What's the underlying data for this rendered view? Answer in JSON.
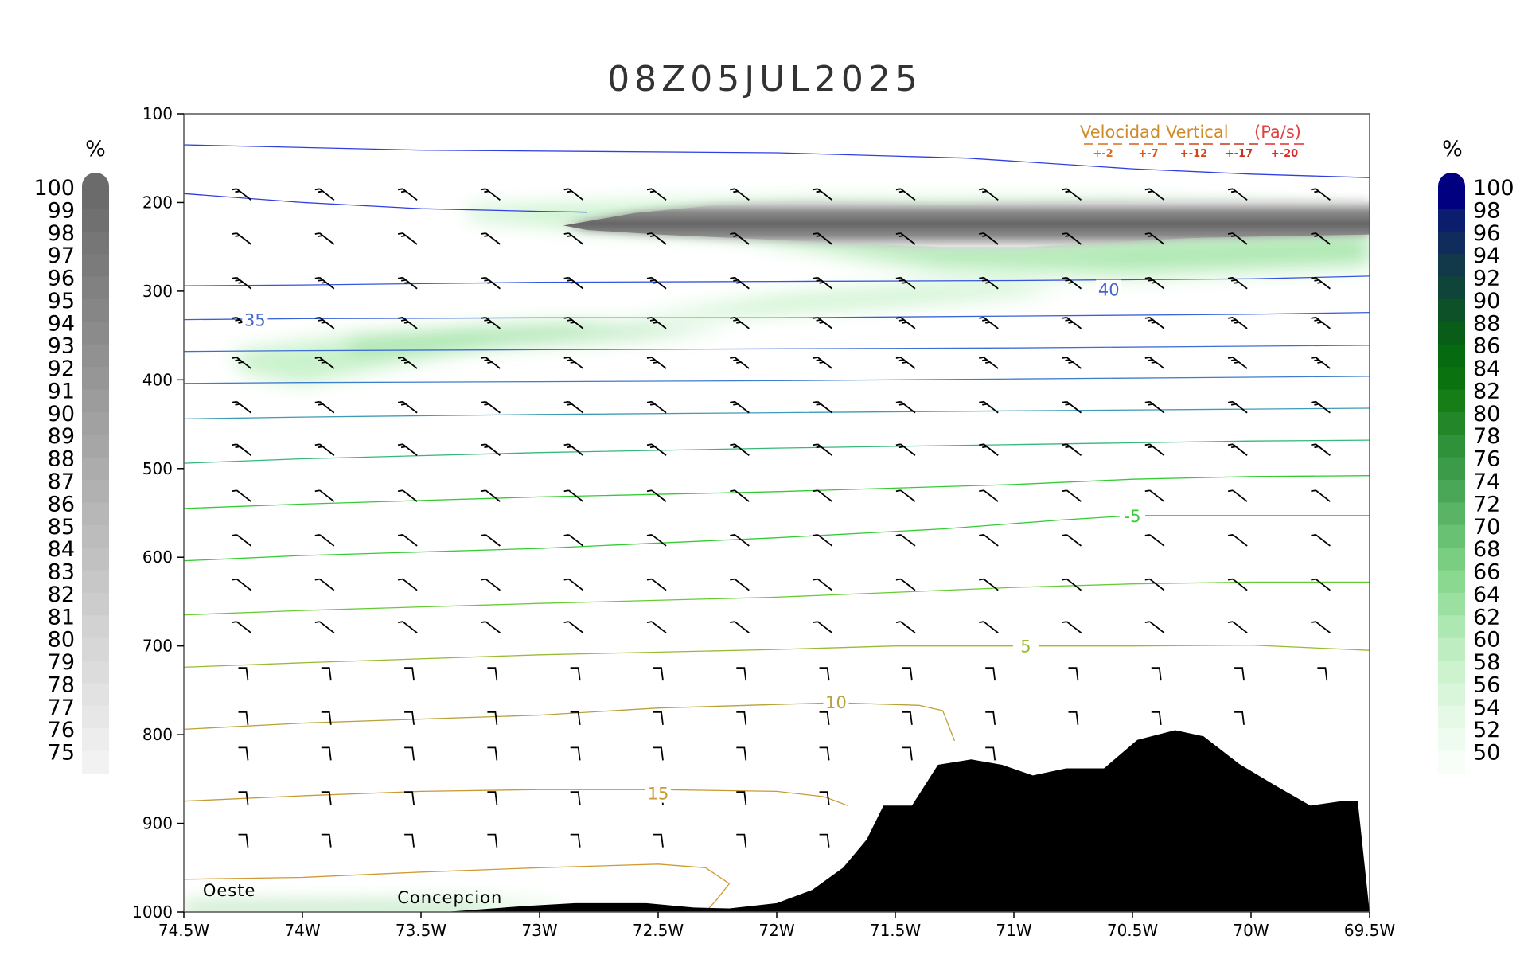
{
  "title": "08Z05JUL2025",
  "chart_data": {
    "type": "cross-section",
    "title": "08Z05JUL2025",
    "x_ticks": [
      "74.5W",
      "74W",
      "73.5W",
      "73W",
      "72.5W",
      "72W",
      "71.5W",
      "71W",
      "70.5W",
      "70W",
      "69.5W"
    ],
    "y_ticks": [
      "100",
      "200",
      "300",
      "400",
      "500",
      "600",
      "700",
      "800",
      "900",
      "1000"
    ],
    "xlim": [
      -74.5,
      -69.5
    ],
    "ylim": [
      100,
      1000
    ],
    "y_axis_inverted": true,
    "colorbar_left": {
      "unit": "%",
      "levels": [
        "100",
        "99",
        "98",
        "97",
        "96",
        "95",
        "94",
        "93",
        "92",
        "91",
        "90",
        "89",
        "88",
        "87",
        "86",
        "85",
        "84",
        "83",
        "82",
        "81",
        "80",
        "79",
        "78",
        "77",
        "76",
        "75"
      ],
      "color_top": "#6b6b6b",
      "color_bottom": "#f2f2f2"
    },
    "colorbar_right": {
      "unit": "%",
      "levels": [
        "100",
        "98",
        "96",
        "94",
        "92",
        "90",
        "88",
        "86",
        "84",
        "82",
        "80",
        "78",
        "76",
        "74",
        "72",
        "70",
        "68",
        "66",
        "64",
        "62",
        "60",
        "58",
        "56",
        "54",
        "52",
        "50"
      ],
      "colors": [
        "#000080",
        "#0b1e6e",
        "#0f2c5c",
        "#12394a",
        "#0f4538",
        "#0c5128",
        "#085e18",
        "#056a10",
        "#0a730f",
        "#167d17",
        "#23872a",
        "#2f913a",
        "#3c9b48",
        "#4aa757",
        "#59b465",
        "#69c274",
        "#79ce82",
        "#8bd891",
        "#9ce0a1",
        "#ade7b1",
        "#bdedc0",
        "#ccf2ce",
        "#d9f6da",
        "#e5f9e6",
        "#eefcef",
        "#f6fef7"
      ]
    },
    "legend": {
      "title_left": "Velocidad Vertical",
      "title_right": "(Pa/s)",
      "items": [
        "+-2",
        "+-7",
        "+-12",
        "+-17",
        "+-20"
      ],
      "colors": [
        "#e06c1a",
        "#d85a1a",
        "#d0441a",
        "#c8321a",
        "#e02b2b"
      ],
      "position": "top-right"
    },
    "isotherm_labels": [
      {
        "text": "40",
        "lon": -70.6,
        "p": 298,
        "color": "#4466cc"
      },
      {
        "text": "35",
        "lon": -74.2,
        "p": 332,
        "color": "#4466cc"
      },
      {
        "text": "-5",
        "lon": -70.5,
        "p": 553,
        "color": "#33cc33"
      },
      {
        "text": "5",
        "lon": -70.95,
        "p": 700,
        "color": "#99bb33"
      },
      {
        "text": "10",
        "lon": -71.75,
        "p": 763,
        "color": "#b8a23a"
      },
      {
        "text": "15",
        "lon": -72.5,
        "p": 866,
        "color": "#c89a35"
      }
    ],
    "place_labels": [
      {
        "text": "Oeste",
        "lon": -74.42,
        "p": 982
      },
      {
        "text": "Concepcion",
        "lon": -73.6,
        "p": 990
      }
    ]
  }
}
